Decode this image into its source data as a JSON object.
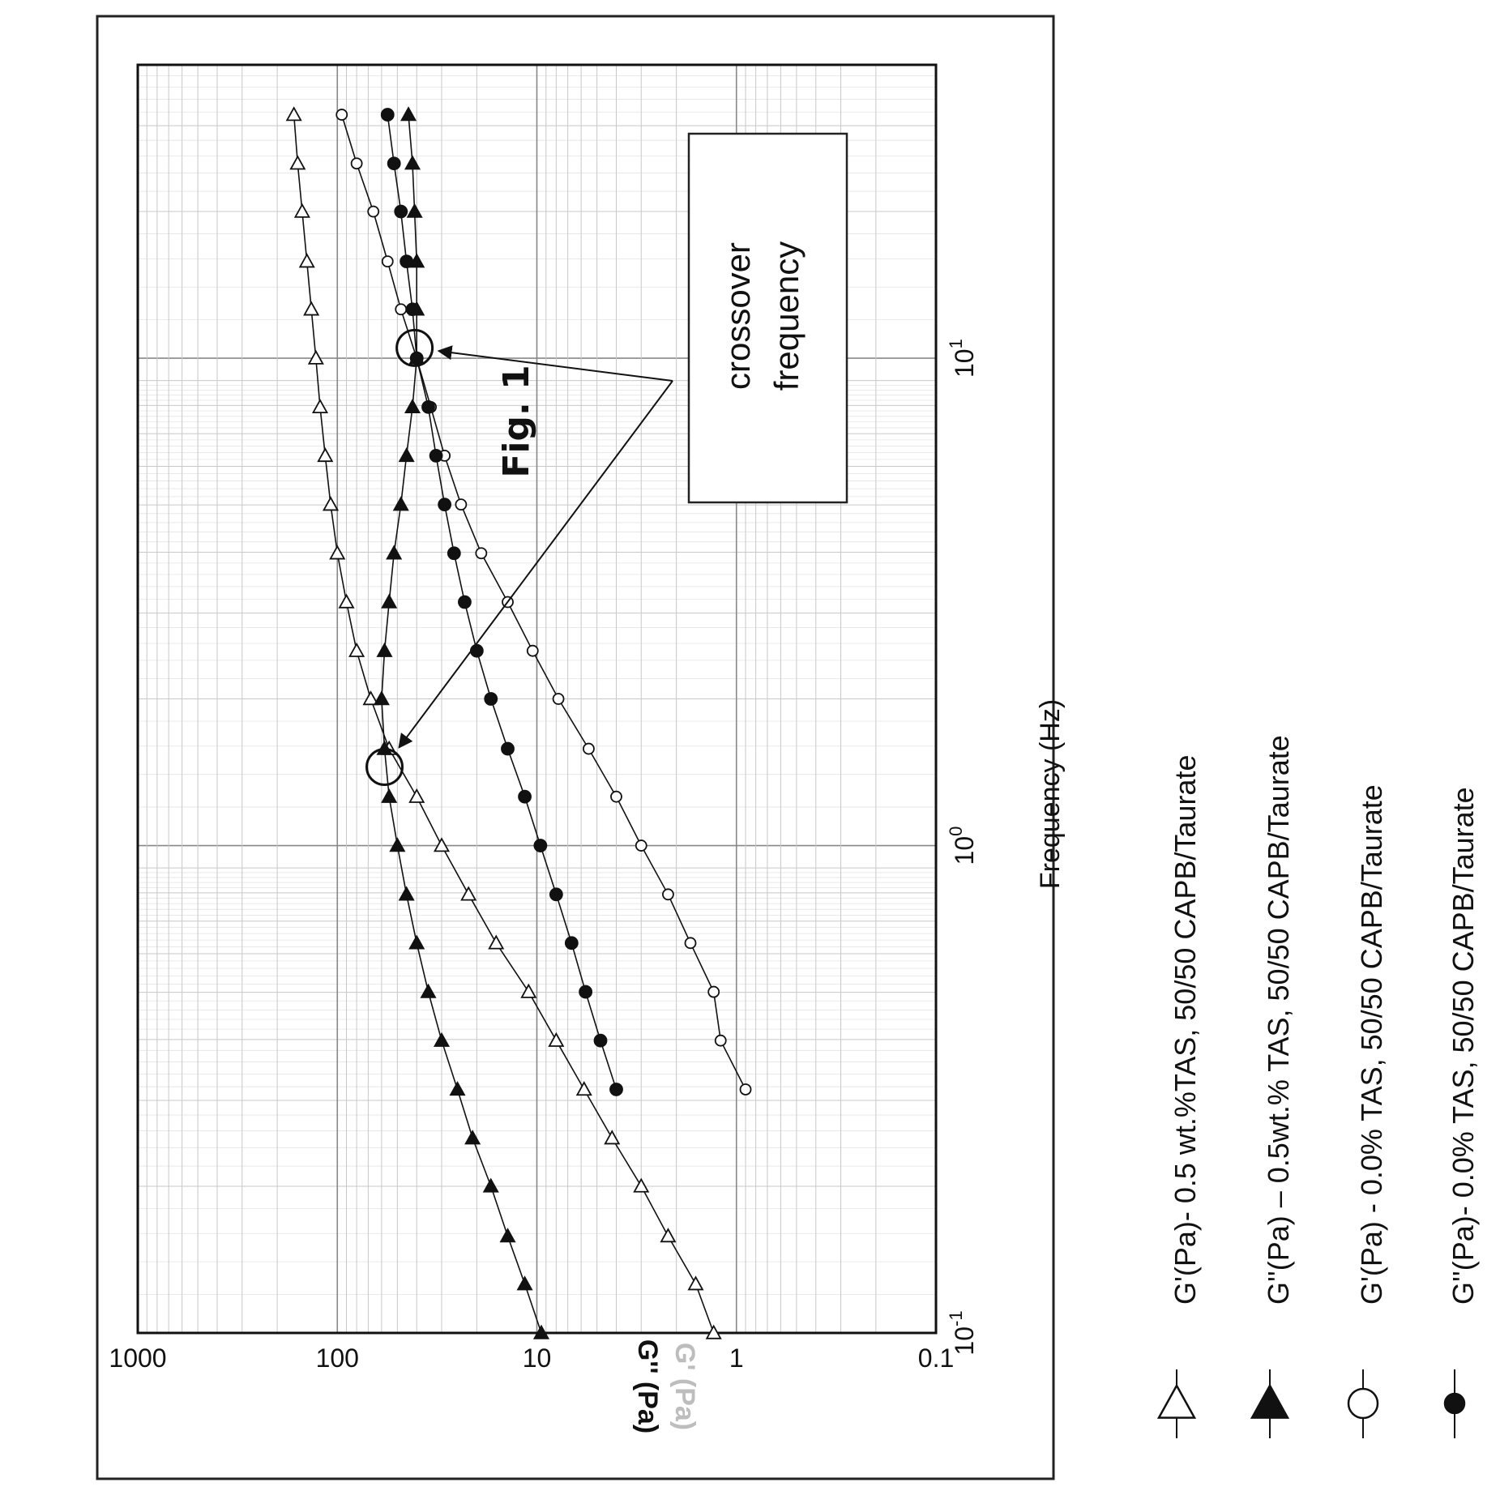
{
  "figure_label": "Fig. 1",
  "annotation": {
    "line1": "crossover",
    "line2": "frequency"
  },
  "ylabel_main": "G'' (Pa)",
  "ylabel_faded": "G' (Pa)",
  "chart_data": {
    "type": "line",
    "xlabel": "Frequency (Hz)",
    "xscale": "log",
    "yscale": "log",
    "xlim": [
      0.1,
      40
    ],
    "ylim": [
      0.1,
      1000
    ],
    "x_ticks": [
      {
        "base": "10",
        "exp": "-1"
      },
      {
        "base": "10",
        "exp": "0"
      },
      {
        "base": "10",
        "exp": "1"
      }
    ],
    "y_ticks": [
      "0.1",
      "1",
      "10",
      "100",
      "1000"
    ],
    "grid": true,
    "legend_position": "bottom",
    "series": [
      {
        "name": "G'(Pa)- 0.5 wt.%TAS, 50/50 CAPB/Taurate",
        "marker": "open-triangle",
        "x": [
          0.1,
          0.126,
          0.158,
          0.2,
          0.251,
          0.316,
          0.398,
          0.501,
          0.631,
          0.794,
          1.0,
          1.26,
          1.58,
          2.0,
          2.51,
          3.16,
          3.98,
          5.01,
          6.31,
          7.94,
          10.0,
          12.6,
          15.8,
          20.0,
          25.1,
          31.6
        ],
        "y": [
          1.3,
          1.6,
          2.2,
          3.0,
          4.2,
          5.8,
          8.0,
          11.0,
          16.0,
          22.0,
          30.0,
          40.0,
          55.0,
          68.0,
          80.0,
          90.0,
          100.0,
          108.0,
          115.0,
          122.0,
          128.0,
          135.0,
          142.0,
          150.0,
          158.0,
          165.0
        ]
      },
      {
        "name": "G''(Pa) – 0.5wt.% TAS, 50/50 CAPB/Taurate",
        "marker": "filled-triangle",
        "x": [
          0.1,
          0.126,
          0.158,
          0.2,
          0.251,
          0.316,
          0.398,
          0.501,
          0.631,
          0.794,
          1.0,
          1.26,
          1.58,
          2.0,
          2.51,
          3.16,
          3.98,
          5.01,
          6.31,
          7.94,
          10.0,
          12.6,
          15.8,
          20.0,
          25.1,
          31.6
        ],
        "y": [
          9.5,
          11.5,
          14.0,
          17.0,
          21.0,
          25.0,
          30.0,
          35.0,
          40.0,
          45.0,
          50.0,
          55.0,
          58.0,
          60.0,
          58.0,
          55.0,
          52.0,
          48.0,
          45.0,
          42.0,
          40.0,
          40.0,
          40.0,
          41.0,
          42.0,
          44.0
        ]
      },
      {
        "name": "G'(Pa) - 0.0% TAS, 50/50 CAPB/Taurate",
        "marker": "open-circle",
        "x": [
          0.316,
          0.398,
          0.501,
          0.631,
          0.794,
          1.0,
          1.26,
          1.58,
          2.0,
          2.51,
          3.16,
          3.98,
          5.01,
          6.31,
          7.94,
          10.0,
          12.6,
          15.8,
          20.0,
          25.1,
          31.6
        ],
        "y": [
          0.9,
          1.2,
          1.3,
          1.7,
          2.2,
          3.0,
          4.0,
          5.5,
          7.8,
          10.5,
          14.0,
          19.0,
          24.0,
          29.0,
          34.0,
          40.0,
          48.0,
          56.0,
          66.0,
          80.0,
          95.0
        ]
      },
      {
        "name": "G''(Pa)- 0.0% TAS, 50/50 CAPB/Taurate",
        "marker": "filled-circle",
        "x": [
          0.316,
          0.398,
          0.501,
          0.631,
          0.794,
          1.0,
          1.26,
          1.58,
          2.0,
          2.51,
          3.16,
          3.98,
          5.01,
          6.31,
          7.94,
          10.0,
          12.6,
          15.8,
          20.0,
          25.1,
          31.6
        ],
        "y": [
          4.0,
          4.8,
          5.7,
          6.7,
          8.0,
          9.6,
          11.5,
          14.0,
          17.0,
          20.0,
          23.0,
          26.0,
          29.0,
          32.0,
          35.0,
          40.0,
          42.0,
          45.0,
          48.0,
          52.0,
          56.0
        ]
      }
    ],
    "crossover_points": [
      {
        "x": 1.45,
        "y": 58
      },
      {
        "x": 10.5,
        "y": 41
      }
    ]
  }
}
